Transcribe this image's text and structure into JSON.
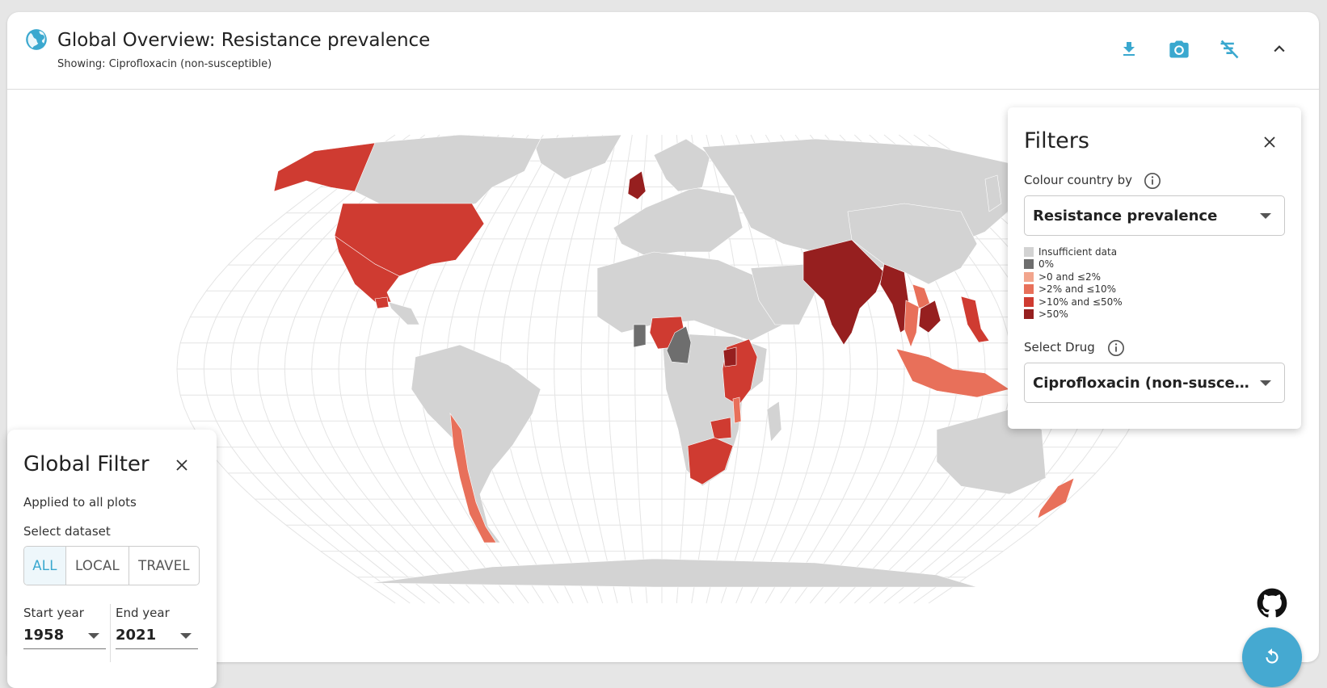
{
  "header": {
    "title": "Global Overview: Resistance prevalence",
    "subtitle": "Showing: Ciprofloxacin (non-susceptible)",
    "actions": [
      {
        "name": "download-icon"
      },
      {
        "name": "camera-icon"
      },
      {
        "name": "filter-off-icon"
      },
      {
        "name": "chevron-up-icon"
      }
    ]
  },
  "colors": {
    "accent": "#3aa8cf",
    "insufficient": "#d3d3d3",
    "zero": "#6e6e6e",
    "low": "#f2a58d",
    "mid": "#e8705a",
    "high": "#cf3b31",
    "very_high": "#961f1f"
  },
  "filters": {
    "title": "Filters",
    "colour_by_label": "Colour country by",
    "colour_by_value": "Resistance prevalence",
    "legend": [
      {
        "label": "Insufficient data",
        "color": "#d3d3d3"
      },
      {
        "label": "0%",
        "color": "#6e6e6e"
      },
      {
        "label": ">0 and ≤2%",
        "color": "#f2a58d"
      },
      {
        "label": ">2% and ≤10%",
        "color": "#e8705a"
      },
      {
        "label": ">10% and ≤50%",
        "color": "#cf3b31"
      },
      {
        "label": ">50%",
        "color": "#961f1f"
      }
    ],
    "drug_label": "Select Drug",
    "drug_value": "Ciprofloxacin (non-susceptible)"
  },
  "global_filter": {
    "title": "Global Filter",
    "applied_text": "Applied to all plots",
    "dataset_label": "Select dataset",
    "datasets": [
      "ALL",
      "LOCAL",
      "TRAVEL"
    ],
    "selected_dataset": "ALL",
    "start_year_label": "Start year",
    "start_year": "1958",
    "end_year_label": "End year",
    "end_year": "2021"
  },
  "map": {
    "projection": "Robinson",
    "countries": [
      {
        "name": "United Kingdom",
        "category": ">50%"
      },
      {
        "name": "India",
        "category": ">50%"
      },
      {
        "name": "Bangladesh",
        "category": ">50%"
      },
      {
        "name": "Myanmar",
        "category": ">50%"
      },
      {
        "name": "Cambodia",
        "category": ">50%"
      },
      {
        "name": "Uganda",
        "category": ">50%"
      },
      {
        "name": "United States",
        "category": ">10% and ≤50%"
      },
      {
        "name": "Mexico",
        "category": ">10% and ≤50%"
      },
      {
        "name": "Guatemala",
        "category": ">10% and ≤50%"
      },
      {
        "name": "Nigeria",
        "category": ">10% and ≤50%"
      },
      {
        "name": "Kenya",
        "category": ">10% and ≤50%"
      },
      {
        "name": "Tanzania",
        "category": ">10% and ≤50%"
      },
      {
        "name": "South Africa",
        "category": ">10% and ≤50%"
      },
      {
        "name": "Zimbabwe",
        "category": ">10% and ≤50%"
      },
      {
        "name": "Philippines",
        "category": ">10% and ≤50%"
      },
      {
        "name": "Vietnam",
        "category": ">10% and ≤50%"
      },
      {
        "name": "Chile",
        "category": ">2% and ≤10%"
      },
      {
        "name": "Malawi",
        "category": ">2% and ≤10%"
      },
      {
        "name": "Indonesia",
        "category": ">2% and ≤10%"
      },
      {
        "name": "Thailand",
        "category": ">2% and ≤10%"
      },
      {
        "name": "Laos",
        "category": ">2% and ≤10%"
      },
      {
        "name": "New Zealand",
        "category": ">2% and ≤10%"
      },
      {
        "name": "Ghana",
        "category": "0%"
      },
      {
        "name": "Cameroon",
        "category": "0%"
      }
    ]
  },
  "floating": {
    "github": "github-icon",
    "reset": "refresh-icon"
  }
}
